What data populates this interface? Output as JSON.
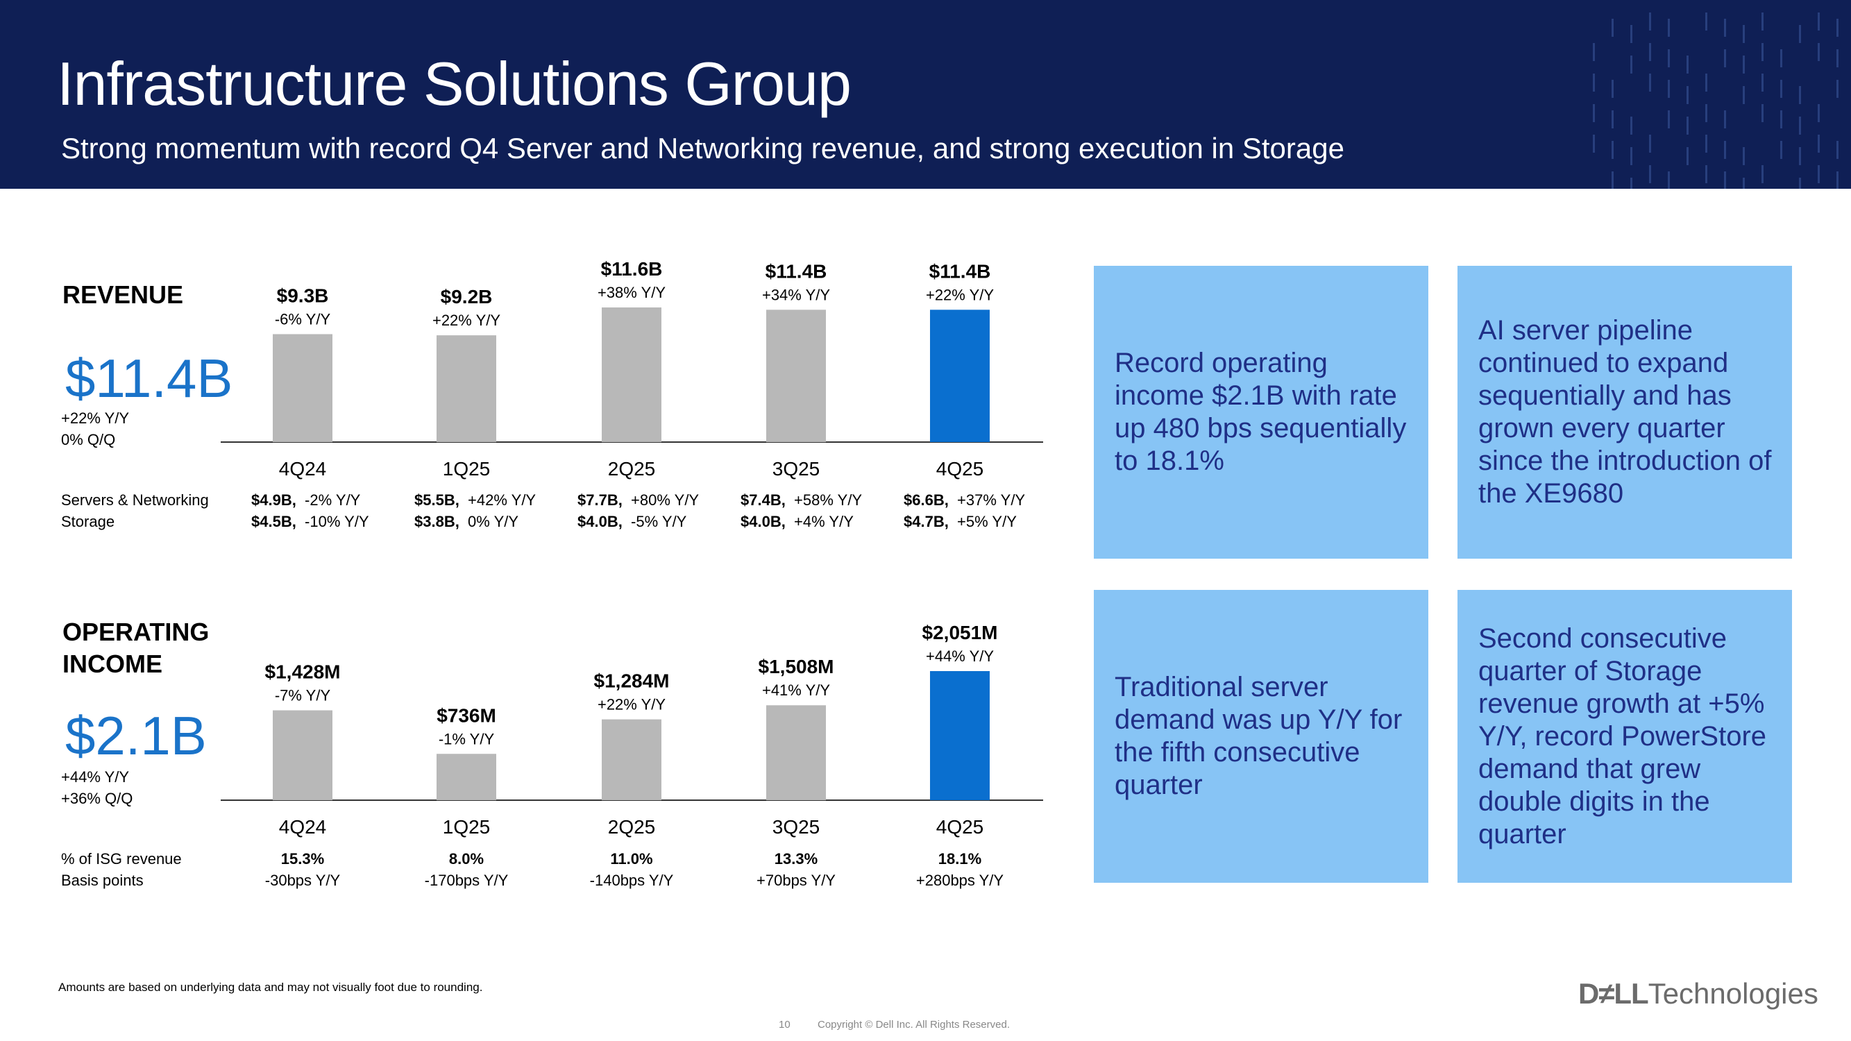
{
  "header": {
    "title": "Infrastructure Solutions Group",
    "subtitle": "Strong momentum with record Q4 Server and Networking revenue, and strong execution in Storage"
  },
  "revenue": {
    "label": "REVENUE",
    "big_value": "$11.4B",
    "change_lines": "+22% Y/Y\n0% Q/Q",
    "breakdown": {
      "row_labels": [
        "Servers & Networking",
        "Storage"
      ],
      "servers_networking": [
        {
          "value": "$4.9B,",
          "change": "-2% Y/Y"
        },
        {
          "value": "$5.5B,",
          "change": "+42% Y/Y"
        },
        {
          "value": "$7.7B,",
          "change": "+80% Y/Y"
        },
        {
          "value": "$7.4B,",
          "change": "+58% Y/Y"
        },
        {
          "value": "$6.6B,",
          "change": "+37% Y/Y"
        }
      ],
      "storage": [
        {
          "value": "$4.5B,",
          "change": "-10% Y/Y"
        },
        {
          "value": "$3.8B,",
          "change": "0% Y/Y"
        },
        {
          "value": "$4.0B,",
          "change": "-5% Y/Y"
        },
        {
          "value": "$4.0B,",
          "change": "+4% Y/Y"
        },
        {
          "value": "$4.7B,",
          "change": "+5% Y/Y"
        }
      ]
    }
  },
  "operating_income": {
    "label": "OPERATING\nINCOME",
    "big_value": "$2.1B",
    "change_lines": "+44% Y/Y\n+36% Q/Q",
    "table": {
      "row_labels": [
        "% of ISG revenue",
        "Basis points"
      ],
      "pct_of_isg_revenue": [
        "15.3%",
        "8.0%",
        "11.0%",
        "13.3%",
        "18.1%"
      ],
      "basis_points": [
        "-30bps Y/Y",
        "-170bps Y/Y",
        "-140bps Y/Y",
        "+70bps Y/Y",
        "+280bps Y/Y"
      ]
    }
  },
  "chart_data": [
    {
      "type": "bar",
      "categories": [
        "4Q24",
        "1Q25",
        "2Q25",
        "3Q25",
        "4Q25"
      ],
      "values": [
        9.3,
        9.2,
        11.6,
        11.4,
        11.4
      ],
      "value_labels": [
        "$9.3B",
        "$9.2B",
        "$11.6B",
        "$11.4B",
        "$11.4B"
      ],
      "yoy_labels": [
        "-6% Y/Y",
        "+22% Y/Y",
        "+38% Y/Y",
        "+34% Y/Y",
        "+22% Y/Y"
      ],
      "unit": "$B",
      "highlight_index": 4,
      "colors": {
        "default": "#b8b8b8",
        "highlight": "#0a6fcf",
        "axis": "#333333"
      },
      "title": "REVENUE"
    },
    {
      "type": "bar",
      "categories": [
        "4Q24",
        "1Q25",
        "2Q25",
        "3Q25",
        "4Q25"
      ],
      "values": [
        1428,
        736,
        1284,
        1508,
        2051
      ],
      "value_labels": [
        "$1,428M",
        "$736M",
        "$1,284M",
        "$1,508M",
        "$2,051M"
      ],
      "yoy_labels": [
        "-7% Y/Y",
        "-1% Y/Y",
        "+22% Y/Y",
        "+41% Y/Y",
        "+44% Y/Y"
      ],
      "unit": "$M",
      "highlight_index": 4,
      "colors": {
        "default": "#b8b8b8",
        "highlight": "#0a6fcf",
        "axis": "#333333"
      },
      "title": "OPERATING INCOME"
    }
  ],
  "boxes": [
    "Record operating income $2.1B with rate up 480 bps sequentially to 18.1%",
    "AI server pipeline continued to expand sequentially and has grown every quarter since the introduction of the XE9680",
    "Traditional server demand was up Y/Y for the fifth consecutive quarter",
    "Second consecutive quarter of Storage revenue growth at +5% Y/Y, record PowerStore demand that grew double digits in the quarter"
  ],
  "footer": {
    "footnote": "Amounts are based on underlying data and may not visually foot due to rounding.",
    "page_number": "10",
    "copyright": "Copyright © Dell Inc. All Rights Reserved.",
    "logo_dell": "D≠LL",
    "logo_tech": "Technologies"
  }
}
